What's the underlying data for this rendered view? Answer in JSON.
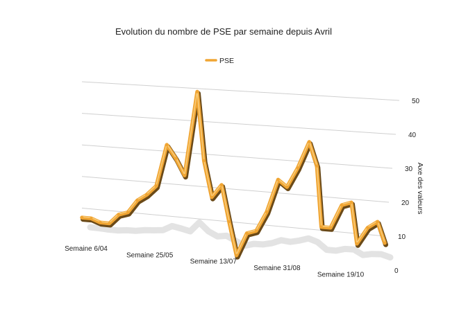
{
  "chart_data": {
    "type": "line",
    "title": "Evolution du nombre de PSE par semaine depuis Avril",
    "ylabel": "Axe des valeurs",
    "xlabel": "",
    "ylim": [
      0,
      50
    ],
    "yticks": [
      0,
      10,
      20,
      30,
      40,
      50
    ],
    "legend_position": "top-center",
    "grid": true,
    "x_tick_labels": [
      "Semaine 6/04",
      "Semaine 25/05",
      "Semaine 13/07",
      "Semaine 31/08",
      "Semaine 19/10"
    ],
    "x_tick_indices": [
      0,
      7,
      14,
      21,
      28
    ],
    "series": [
      {
        "name": "PSE",
        "color": "#f0a533",
        "values": [
          7,
          7,
          6,
          6,
          9,
          10,
          14,
          16,
          19,
          32,
          28,
          23,
          49,
          28,
          17,
          21,
          10,
          0,
          7,
          8,
          14,
          24,
          22,
          28,
          36,
          29,
          11,
          11,
          18,
          19,
          7,
          12,
          14,
          8
        ]
      }
    ]
  }
}
